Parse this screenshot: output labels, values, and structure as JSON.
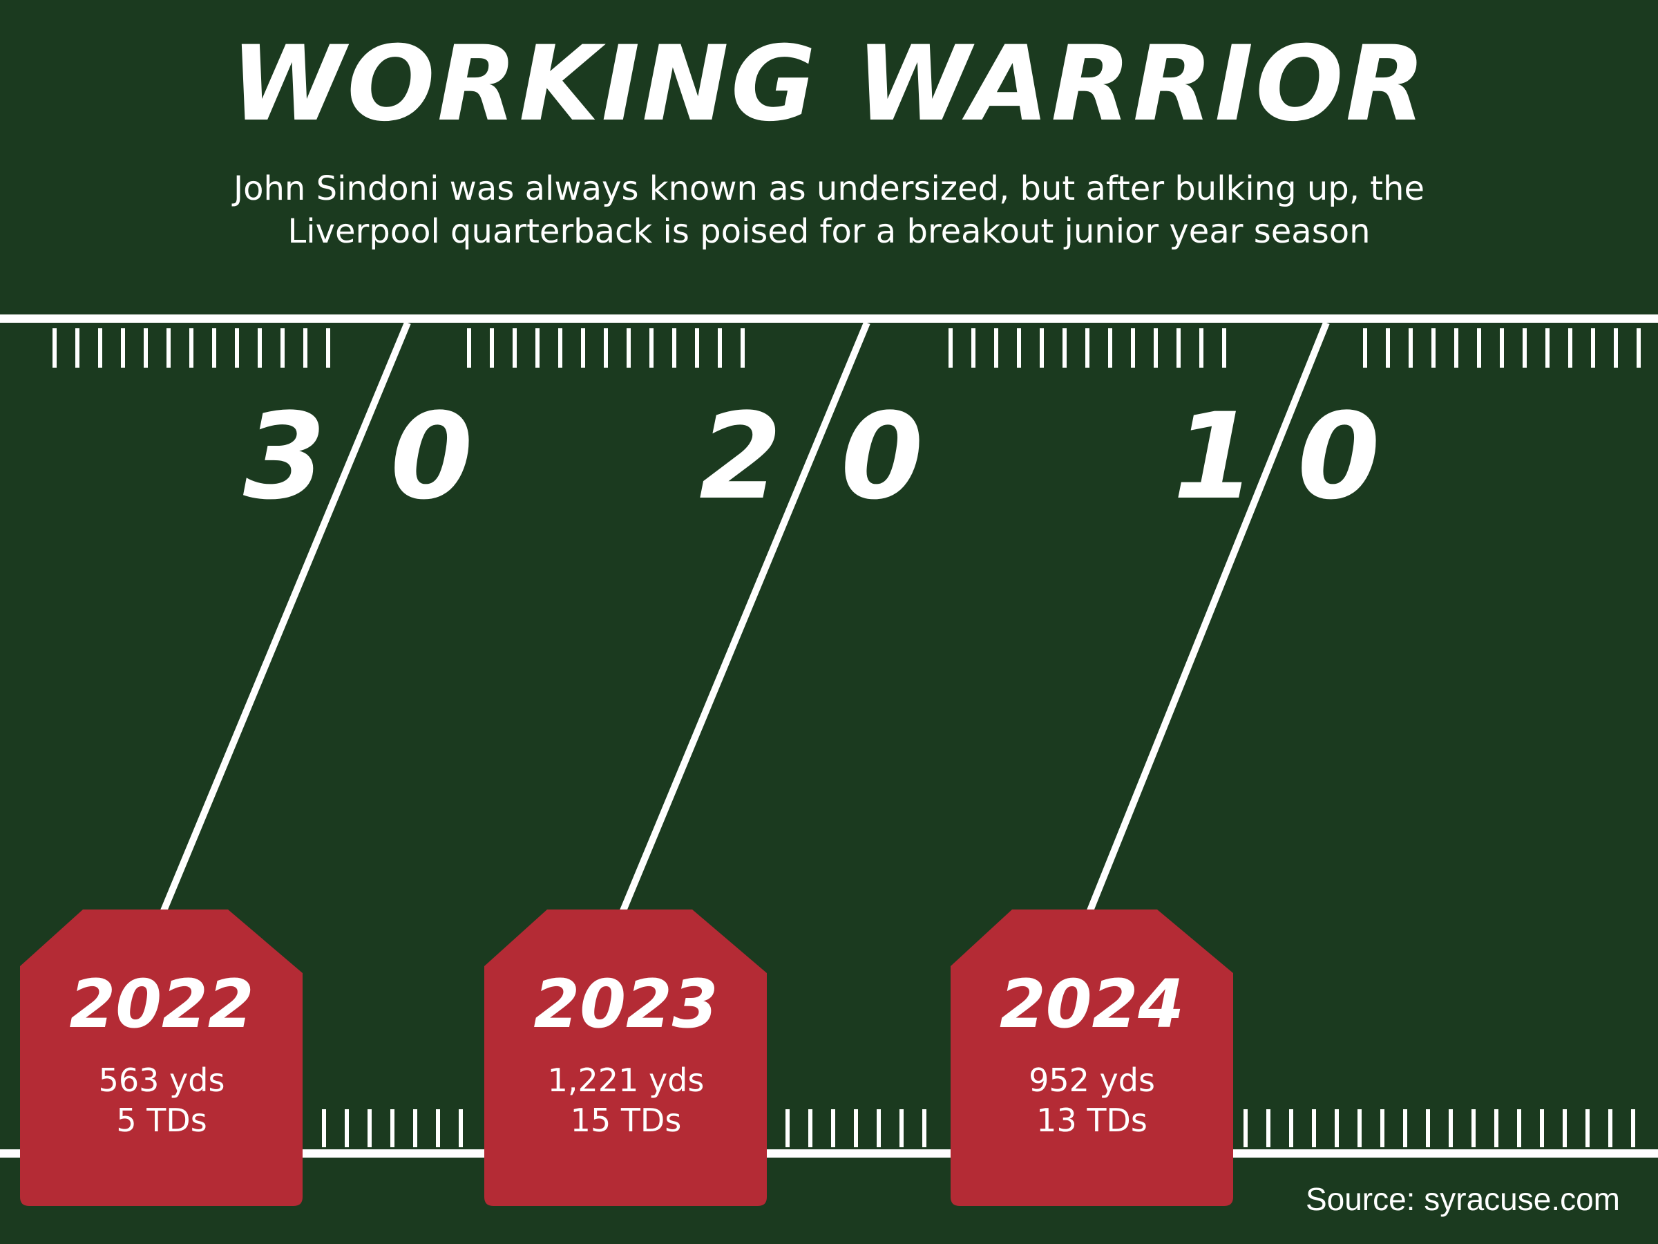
{
  "header": {
    "title": "WORKING WARRIOR",
    "subtitle_line1": "John Sindoni was always known as undersized, but after bulking up, the",
    "subtitle_line2": "Liverpool quarterback is poised for a breakout junior year season"
  },
  "field": {
    "yard_markers": [
      {
        "left_digit": "3",
        "right_digit": "0"
      },
      {
        "left_digit": "2",
        "right_digit": "0"
      },
      {
        "left_digit": "1",
        "right_digit": "0"
      }
    ]
  },
  "seasons": [
    {
      "year": "2022",
      "yards": "563 yds",
      "tds": "5 TDs"
    },
    {
      "year": "2023",
      "yards": "1,221 yds",
      "tds": "15 TDs"
    },
    {
      "year": "2024",
      "yards": "952 yds",
      "tds": "13 TDs"
    }
  ],
  "footer": {
    "source": "Source: syracuse.com"
  },
  "colors": {
    "background": "#1b3a1f",
    "field_lines": "#ffffff",
    "badge": "#b42b35"
  }
}
